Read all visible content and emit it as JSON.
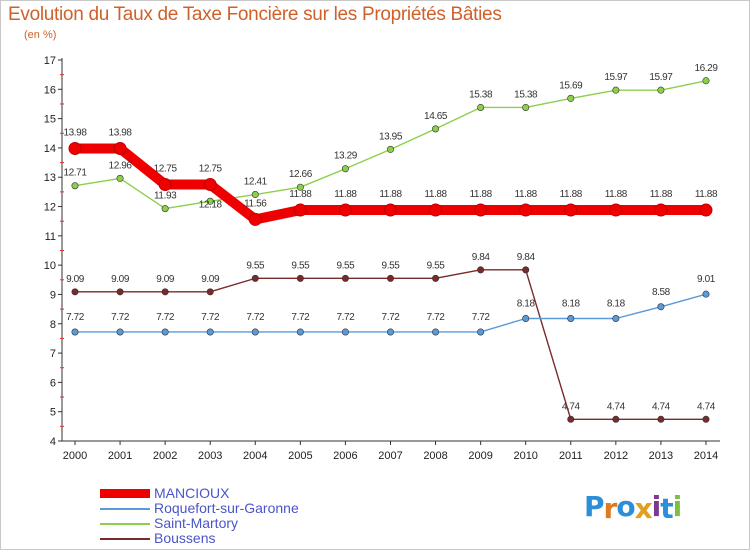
{
  "title": "Evolution du Taux de Taxe Foncière sur les Propriétés Bâties",
  "unit_label": "(en %)",
  "logo": {
    "text": "Proxiti",
    "letters": [
      "P",
      "r",
      "o",
      "x",
      "i",
      "t",
      "i"
    ],
    "colors": [
      "#2a8fd8",
      "#e07a20",
      "#2a8fd8",
      "#e0a020",
      "#7a3a90",
      "#2a8fd8",
      "#7cc040"
    ]
  },
  "chart_data": {
    "type": "line",
    "title": "Evolution du Taux de Taxe Foncière sur les Propriétés Bâties",
    "ylabel": "(en %)",
    "xlabel": "",
    "x": [
      "2000",
      "2001",
      "2002",
      "2003",
      "2004",
      "2005",
      "2006",
      "2007",
      "2008",
      "2009",
      "2010",
      "2011",
      "2012",
      "2013",
      "2014"
    ],
    "ylim": [
      4,
      17
    ],
    "yticks": [
      4,
      5,
      6,
      7,
      8,
      9,
      10,
      11,
      12,
      13,
      14,
      15,
      16,
      17
    ],
    "series": [
      {
        "name": "MANCIOUX",
        "color": "#ee0000",
        "thick": true,
        "values": [
          13.98,
          13.98,
          12.75,
          12.75,
          11.56,
          11.88,
          11.88,
          11.88,
          11.88,
          11.88,
          11.88,
          11.88,
          11.88,
          11.88,
          11.88
        ],
        "labels": [
          "13.98",
          "13.98",
          "12.75",
          "12.75",
          "11.56",
          "11.88",
          "11.88",
          "11.88",
          "11.88",
          "11.88",
          "11.88",
          "11.88",
          "11.88",
          "11.88",
          "11.88"
        ]
      },
      {
        "name": "Roquefort-sur-Garonne",
        "color": "#5a9ad8",
        "thick": false,
        "values": [
          7.72,
          7.72,
          7.72,
          7.72,
          7.72,
          7.72,
          7.72,
          7.72,
          7.72,
          7.72,
          8.18,
          8.18,
          8.18,
          8.58,
          9.01
        ],
        "labels": [
          "7.72",
          "7.72",
          "7.72",
          "7.72",
          "7.72",
          "7.72",
          "7.72",
          "7.72",
          "7.72",
          "7.72",
          "8.18",
          "8.18",
          "8.18",
          "8.58",
          "9.01"
        ]
      },
      {
        "name": "Saint-Martory",
        "color": "#8cd04a",
        "thick": false,
        "values": [
          12.71,
          12.96,
          11.93,
          12.18,
          12.41,
          12.66,
          13.29,
          13.95,
          14.65,
          15.38,
          15.38,
          15.69,
          15.97,
          15.97,
          16.29
        ],
        "labels": [
          "12.71",
          "12.96",
          "11.93",
          "12.18",
          "12.41",
          "12.66",
          "13.29",
          "13.95",
          "14.65",
          "15.38",
          "15.38",
          "15.69",
          "15.97",
          "15.97",
          "16.29"
        ]
      },
      {
        "name": "Boussens",
        "color": "#7a2a2a",
        "thick": false,
        "values": [
          9.09,
          9.09,
          9.09,
          9.09,
          9.55,
          9.55,
          9.55,
          9.55,
          9.55,
          9.84,
          9.84,
          4.74,
          4.74,
          4.74,
          4.74
        ],
        "labels": [
          "9.09",
          "9.09",
          "9.09",
          "9.09",
          "9.55",
          "9.55",
          "9.55",
          "9.55",
          "9.55",
          "9.84",
          "9.84",
          "4.74",
          "4.74",
          "4.74",
          "4.74"
        ]
      }
    ],
    "legend_position": "bottom-left",
    "grid": false
  }
}
